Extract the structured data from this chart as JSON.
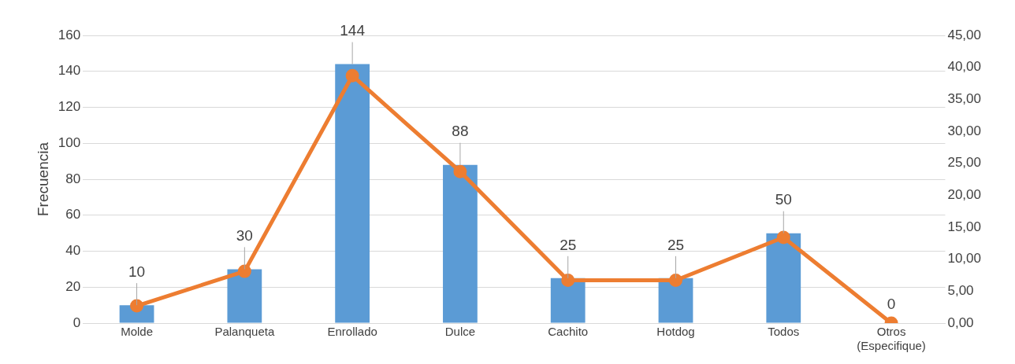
{
  "chart_data": {
    "type": "bar",
    "ylabel": "Frecuencia",
    "categories": [
      "Molde",
      "Palanqueta",
      "Enrollado",
      "Dulce",
      "Cachito",
      "Hotdog",
      "Todos",
      "Otros (Especifique)"
    ],
    "series": [
      {
        "color": "#5b9bd5",
        "values": [
          10,
          30,
          144,
          88,
          25,
          25,
          50,
          0
        ],
        "value_labels": [
          "10",
          "30",
          "144",
          "88",
          "25",
          "25",
          "50",
          "0"
        ]
      },
      {
        "type": "line",
        "axis": "y2",
        "color": "#ed7d31",
        "marker": "circle",
        "values": [
          2.7,
          8.1,
          38.7,
          23.7,
          6.7,
          6.7,
          13.4,
          0
        ]
      }
    ],
    "ylim": [
      0,
      160
    ],
    "yticks": [
      0,
      20,
      40,
      60,
      80,
      100,
      120,
      140,
      160
    ],
    "y2lim": [
      0,
      45
    ],
    "y2ticks": [
      {
        "value": 0,
        "label": "0,00"
      },
      {
        "value": 5,
        "label": "5,00"
      },
      {
        "value": 10,
        "label": "10,00"
      },
      {
        "value": 15,
        "label": "15,00"
      },
      {
        "value": 20,
        "label": "20,00"
      },
      {
        "value": 25,
        "label": "25,00"
      },
      {
        "value": 30,
        "label": "30,00"
      },
      {
        "value": 35,
        "label": "35,00"
      },
      {
        "value": 40,
        "label": "40,00"
      },
      {
        "value": 45,
        "label": "45,00"
      }
    ],
    "grid": "y",
    "legend": false
  }
}
